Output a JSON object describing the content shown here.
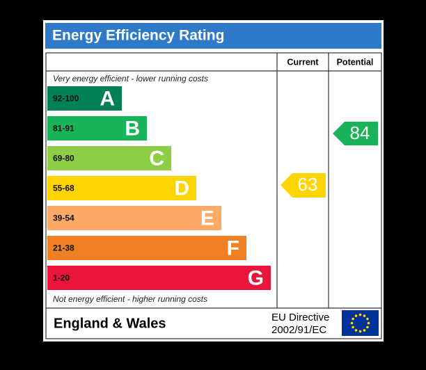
{
  "header": {
    "title": "Energy Efficiency Rating"
  },
  "table": {
    "columns": [
      "Current",
      "Potential"
    ],
    "top_note": "Very energy efficient - lower running costs",
    "bottom_note": "Not energy efficient - higher running costs",
    "bands": [
      {
        "range": "92-100",
        "letter": "A"
      },
      {
        "range": "81-91",
        "letter": "B"
      },
      {
        "range": "69-80",
        "letter": "C"
      },
      {
        "range": "55-68",
        "letter": "D"
      },
      {
        "range": "39-54",
        "letter": "E"
      },
      {
        "range": "21-38",
        "letter": "F"
      },
      {
        "range": "1-20",
        "letter": "G"
      }
    ],
    "current": 63,
    "potential": 84
  },
  "footer": {
    "region": "England & Wales",
    "directive_line1": "EU Directive",
    "directive_line2": "2002/91/EC"
  }
}
